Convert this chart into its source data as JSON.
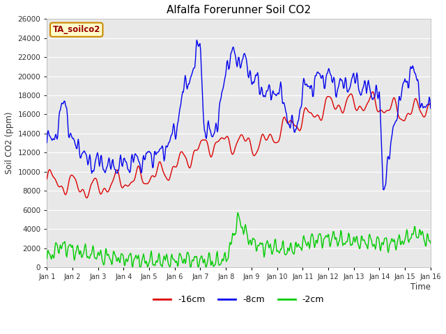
{
  "title": "Alfalfa Forerunner Soil CO2",
  "ylabel": "Soil CO2 (ppm)",
  "xlabel": "Time",
  "ylim": [
    0,
    26000
  ],
  "yticks": [
    0,
    2000,
    4000,
    6000,
    8000,
    10000,
    12000,
    14000,
    16000,
    18000,
    20000,
    22000,
    24000,
    26000
  ],
  "xtick_labels": [
    "Jan 1",
    "Jan 2",
    "Jan 3",
    "Jan 4",
    "Jan 5",
    "Jan 6",
    "Jan 7",
    "Jan 8",
    "Jan 9",
    "Jan 10",
    "Jan 11",
    "Jan 12",
    "Jan 13",
    "Jan 14",
    "Jan 15",
    "Jan 16"
  ],
  "legend_entries": [
    "-16cm",
    "-8cm",
    "-2cm"
  ],
  "line_colors": [
    "#dd0000",
    "#0000ee",
    "#00cc00"
  ],
  "watermark_text": "TA_soilco2",
  "watermark_bg": "#ffffcc",
  "watermark_border": "#cc8800",
  "watermark_text_color": "#990000",
  "fig_bg": "#ffffff",
  "plot_bg": "#e8e8e8",
  "grid_color": "#ffffff",
  "n_points": 600
}
